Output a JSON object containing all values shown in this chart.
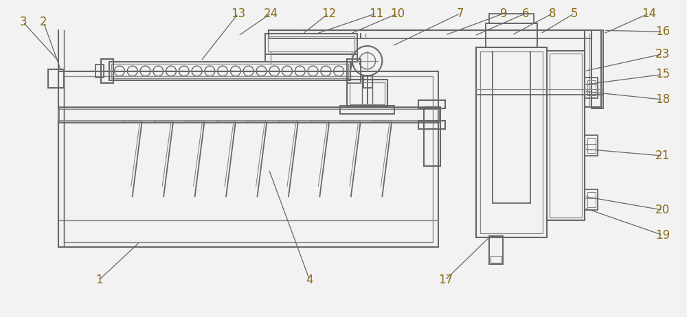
{
  "bg_color": "#f2f2f2",
  "line_color": "#666666",
  "line_width": 1.4,
  "label_color": "#8B6914",
  "label_fontsize": 12,
  "fig_width": 10.0,
  "fig_height": 4.62
}
